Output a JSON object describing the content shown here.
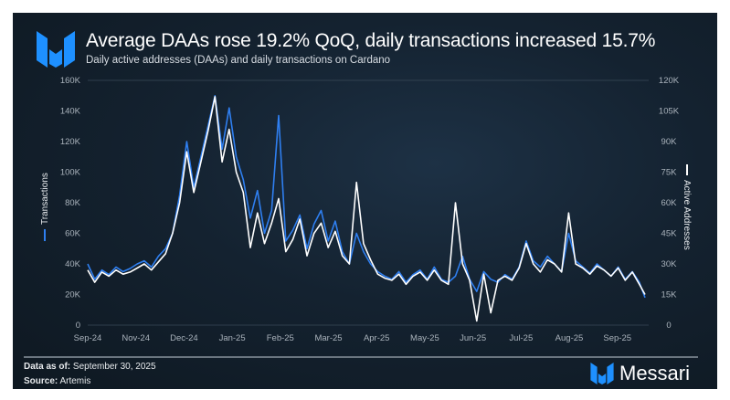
{
  "header": {
    "title": "Average DAAs rose 19.2% QoQ, daily transactions increased 15.7%",
    "subtitle": "Daily active addresses (DAAs) and daily transactions on Cardano"
  },
  "footer": {
    "data_as_of_label": "Data as of:",
    "data_as_of_value": "September 30, 2025",
    "source_label": "Source:",
    "source_value": "Artemis",
    "brand": "Messari"
  },
  "colors": {
    "transactions": "#2f7ff0",
    "active_addresses": "#ffffff",
    "brand_blue": "#1e90ff"
  },
  "chart_data": {
    "type": "line",
    "title": "Average DAAs rose 19.2% QoQ, daily transactions increased 15.7%",
    "x_tick_labels": [
      "Sep-24",
      "Nov-24",
      "Dec-24",
      "Jan-25",
      "Feb-25",
      "Mar-25",
      "Apr-25",
      "May-25",
      "Jun-25",
      "Jul-25",
      "Aug-25",
      "Sep-25"
    ],
    "left_axis": {
      "label": "Transactions",
      "ticks": [
        "0",
        "20K",
        "40K",
        "60K",
        "80K",
        "100K",
        "120K",
        "140K",
        "160K"
      ],
      "ylim": [
        0,
        160000
      ]
    },
    "right_axis": {
      "label": "Active Addresses",
      "ticks": [
        "0",
        "15K",
        "30K",
        "45K",
        "60K",
        "75K",
        "90K",
        "105K",
        "120K"
      ],
      "ylim": [
        0,
        120000
      ]
    },
    "grid": false,
    "x": [
      "2024-09-01",
      "2024-09-06",
      "2024-09-11",
      "2024-09-16",
      "2024-09-21",
      "2024-09-26",
      "2024-10-01",
      "2024-10-06",
      "2024-10-11",
      "2024-10-16",
      "2024-10-21",
      "2024-10-26",
      "2024-10-31",
      "2024-11-05",
      "2024-11-10",
      "2024-11-15",
      "2024-11-20",
      "2024-11-25",
      "2024-11-30",
      "2024-12-05",
      "2024-12-10",
      "2024-12-15",
      "2024-12-20",
      "2024-12-25",
      "2024-12-30",
      "2025-01-04",
      "2025-01-09",
      "2025-01-14",
      "2025-01-19",
      "2025-01-24",
      "2025-01-29",
      "2025-02-03",
      "2025-02-08",
      "2025-02-13",
      "2025-02-18",
      "2025-02-23",
      "2025-02-28",
      "2025-03-05",
      "2025-03-10",
      "2025-03-15",
      "2025-03-20",
      "2025-03-25",
      "2025-03-30",
      "2025-04-04",
      "2025-04-09",
      "2025-04-14",
      "2025-04-19",
      "2025-04-24",
      "2025-04-29",
      "2025-05-04",
      "2025-05-09",
      "2025-05-14",
      "2025-05-19",
      "2025-05-24",
      "2025-05-29",
      "2025-06-03",
      "2025-06-08",
      "2025-06-13",
      "2025-06-18",
      "2025-06-23",
      "2025-06-28",
      "2025-07-03",
      "2025-07-08",
      "2025-07-13",
      "2025-07-18",
      "2025-07-23",
      "2025-07-28",
      "2025-08-02",
      "2025-08-07",
      "2025-08-12",
      "2025-08-17",
      "2025-08-22",
      "2025-08-27",
      "2025-09-01",
      "2025-09-06",
      "2025-09-11",
      "2025-09-16",
      "2025-09-21",
      "2025-09-26",
      "2025-09-30"
    ],
    "series": [
      {
        "name": "Transactions",
        "axis": "left",
        "color": "#2f7ff0",
        "values": [
          40000,
          30000,
          36000,
          33000,
          38000,
          35000,
          37000,
          40000,
          42000,
          38000,
          45000,
          50000,
          60000,
          85000,
          120000,
          90000,
          110000,
          130000,
          150000,
          115000,
          142000,
          110000,
          95000,
          70000,
          88000,
          60000,
          75000,
          137000,
          55000,
          62000,
          72000,
          50000,
          66000,
          75000,
          55000,
          68000,
          48000,
          40000,
          60000,
          48000,
          40000,
          35000,
          32000,
          30000,
          35000,
          28000,
          33000,
          36000,
          30000,
          38000,
          30000,
          28000,
          32000,
          45000,
          30000,
          22000,
          35000,
          30000,
          28000,
          33000,
          30000,
          38000,
          55000,
          42000,
          38000,
          45000,
          40000,
          35000,
          60000,
          42000,
          38000,
          34000,
          40000,
          36000,
          32000,
          38000,
          30000,
          35000,
          28000,
          18000
        ]
      },
      {
        "name": "Active Addresses",
        "axis": "right",
        "color": "#ffffff",
        "values": [
          27000,
          21000,
          26000,
          24000,
          27000,
          25000,
          26000,
          28000,
          30000,
          27000,
          31000,
          35000,
          45000,
          60000,
          85000,
          65000,
          80000,
          95000,
          112000,
          80000,
          96000,
          75000,
          65000,
          38000,
          55000,
          40000,
          50000,
          62000,
          36000,
          42000,
          52000,
          34000,
          45000,
          50000,
          38000,
          46000,
          34000,
          30000,
          70000,
          40000,
          32000,
          25000,
          23000,
          22000,
          25000,
          20000,
          24000,
          26000,
          22000,
          27000,
          22000,
          20000,
          60000,
          30000,
          22000,
          2000,
          25000,
          6000,
          22000,
          24000,
          22000,
          28000,
          40000,
          30000,
          26000,
          32000,
          30000,
          26000,
          55000,
          30000,
          28000,
          25000,
          29000,
          27000,
          24000,
          28000,
          22000,
          26000,
          20000,
          15000
        ]
      }
    ]
  }
}
